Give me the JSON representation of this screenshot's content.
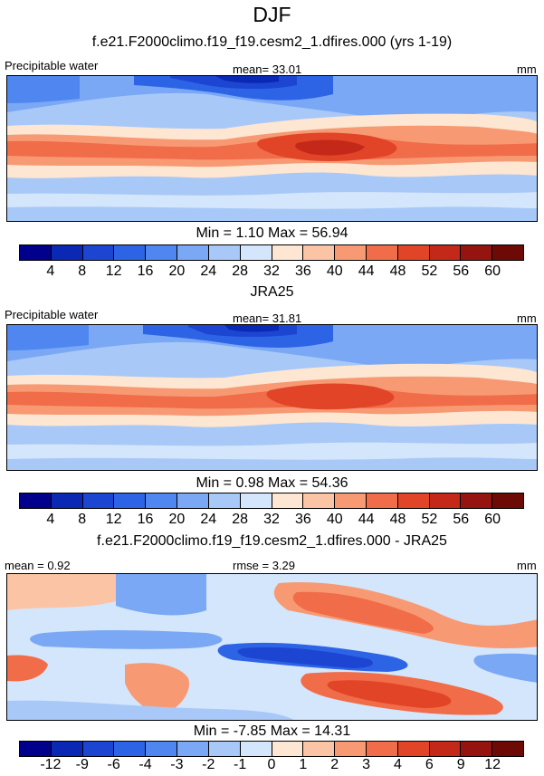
{
  "title": "DJF",
  "panels": [
    {
      "heading": "f.e21.F2000climo.f19_f19.cesm2_1.dfires.000 (yrs 1-19)",
      "left_label": "Precipitable water",
      "mid_label": "mean=  33.01",
      "right_label": "mm",
      "stats": "Min =   1.10 Max =  56.94",
      "ticks": [
        "4",
        "8",
        "12",
        "16",
        "20",
        "24",
        "28",
        "32",
        "36",
        "40",
        "44",
        "48",
        "52",
        "56",
        "60"
      ]
    },
    {
      "heading": "JRA25",
      "left_label": "Precipitable water",
      "mid_label": "mean=  31.81",
      "right_label": "mm",
      "stats": "Min =   0.98 Max =  54.36",
      "ticks": [
        "4",
        "8",
        "12",
        "16",
        "20",
        "24",
        "28",
        "32",
        "36",
        "40",
        "44",
        "48",
        "52",
        "56",
        "60"
      ]
    },
    {
      "heading": "f.e21.F2000climo.f19_f19.cesm2_1.dfires.000 - JRA25",
      "left_label": "mean =   0.92",
      "mid_label": "rmse =   3.29",
      "right_label": "mm",
      "stats": "Min =  -7.85 Max =  14.31",
      "ticks": [
        "-12",
        "-9",
        "-6",
        "-4",
        "-3",
        "-2",
        "-1",
        "0",
        "1",
        "2",
        "3",
        "4",
        "6",
        "9",
        "12"
      ]
    }
  ],
  "colors": {
    "abs_scale": [
      "#00008c",
      "#0a28b4",
      "#1c46d2",
      "#2d64e6",
      "#4f86f0",
      "#7aa8f5",
      "#a8c8f8",
      "#d4e6fb",
      "#fde6d2",
      "#fbc4a4",
      "#f79a74",
      "#f16c48",
      "#e24428",
      "#c42818",
      "#961410",
      "#6e0a06"
    ],
    "diff_scale": [
      "#00008c",
      "#0a28b4",
      "#1c46d2",
      "#2d64e6",
      "#4f86f0",
      "#7aa8f5",
      "#a8c8f8",
      "#d4e6fb",
      "#fde6d2",
      "#fbc4a4",
      "#f79a74",
      "#f16c48",
      "#e24428",
      "#c42818",
      "#961410",
      "#6e0a06"
    ]
  },
  "chart_data": [
    {
      "type": "heatmap",
      "title": "f.e21.F2000climo.f19_f19.cesm2_1.dfires.000 (yrs 1-19)",
      "variable": "Precipitable water",
      "units": "mm",
      "mean": 33.01,
      "min": 1.1,
      "max": 56.94,
      "levels": [
        4,
        8,
        12,
        16,
        20,
        24,
        28,
        32,
        36,
        40,
        44,
        48,
        52,
        56,
        60
      ]
    },
    {
      "type": "heatmap",
      "title": "JRA25",
      "variable": "Precipitable water",
      "units": "mm",
      "mean": 31.81,
      "min": 0.98,
      "max": 54.36,
      "levels": [
        4,
        8,
        12,
        16,
        20,
        24,
        28,
        32,
        36,
        40,
        44,
        48,
        52,
        56,
        60
      ]
    },
    {
      "type": "heatmap",
      "title": "f.e21.F2000climo.f19_f19.cesm2_1.dfires.000 - JRA25",
      "units": "mm",
      "mean": 0.92,
      "rmse": 3.29,
      "min": -7.85,
      "max": 14.31,
      "levels": [
        -12,
        -9,
        -6,
        -4,
        -3,
        -2,
        -1,
        0,
        1,
        2,
        3,
        4,
        6,
        9,
        12
      ]
    }
  ]
}
